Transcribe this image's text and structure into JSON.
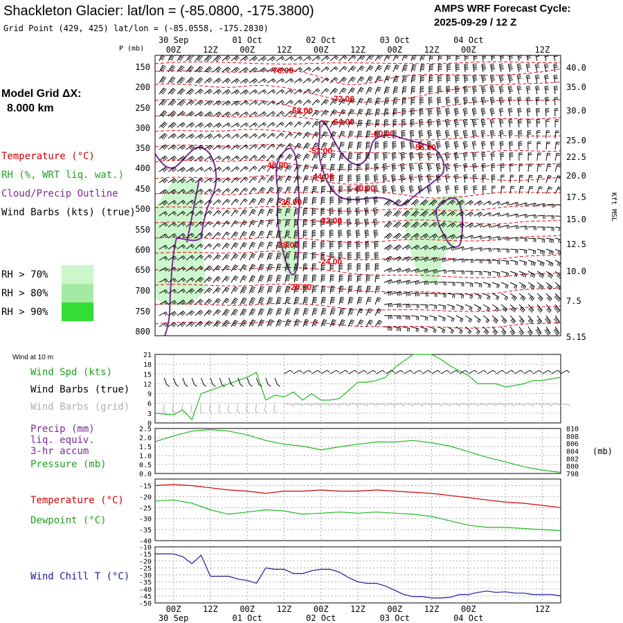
{
  "header": {
    "title": "Shackleton Glacier:  lat/lon = (-85.0800, -175.3800)",
    "grid_point": "Grid Point (429, 425) lat/lon = (-85.0558, -175.2830)",
    "cycle_line1": "AMPS WRF Forecast Cycle:",
    "cycle_line2": "2025-09-29 / 12  Z"
  },
  "model_grid": {
    "line1": "Model Grid ΔX:",
    "line2": "8.000 km"
  },
  "legend": {
    "temperature": "Temperature (°C)",
    "rh": "RH (%, WRT liq. wat.)",
    "cloud": "Cloud/Precip Outline",
    "wind": "Wind Barbs (kts) (true)",
    "rh70": "RH > 70%",
    "rh80": "RH > 80%",
    "rh90": "RH > 90%"
  },
  "colors": {
    "temp": "#e8000b",
    "cloud": "#7a2a96",
    "rh70": "#ccf6cc",
    "rh80": "#a4eaa4",
    "rh90": "#33dd33",
    "wind_spd": "#1fb81f",
    "barb_grid": "#b0b0b0",
    "chill": "#1a1aa0",
    "grid": "#aaaaaa"
  },
  "time_axis": {
    "ticks": [
      "00Z",
      "12Z",
      "00Z",
      "12Z",
      "00Z",
      "12Z",
      "00Z",
      "12Z",
      "00Z",
      "12Z"
    ],
    "dates": [
      "30 Sep",
      "01 Oct",
      "02 Oct",
      "03 Oct",
      "04 Oct"
    ],
    "start_hour": -6,
    "end_hour": 126
  },
  "pressure_axis": {
    "label": "P (mb)",
    "levels": [
      "150",
      "200",
      "250",
      "300",
      "350",
      "400",
      "450",
      "500",
      "550",
      "600",
      "650",
      "700",
      "750",
      "800"
    ],
    "height_label": "Kft MSL",
    "heights": [
      "40.0",
      "35.0",
      "30.0",
      "25.0",
      "22.5",
      "20.0",
      "17.5",
      "15.0",
      "12.5",
      "10.0",
      "7.5",
      "5.15"
    ]
  },
  "temp_contour_labels": [
    "-76.00",
    "-72.00",
    "-68.00",
    "-64.00",
    "-60.00",
    "-56.00",
    "-52.00",
    "-48.00",
    "-44.00",
    "-40.00",
    "-36.00",
    "-32.00",
    "-28.00",
    "-24.00",
    "-20.00"
  ],
  "panel_wind": {
    "title": "Wind at 10 m",
    "spd_label": "Wind Spd (kts)",
    "barbs_true": "Wind Barbs (true)",
    "barbs_grid": "Wind Barbs (grid)",
    "ylabels": [
      "21",
      "18",
      "15",
      "12",
      "9",
      "6",
      "3",
      "0"
    ]
  },
  "panel_precip": {
    "precip_label": "Precip (mm)",
    "liq_label": "liq. equiv.",
    "accum_label": "3-hr accum",
    "pressure_label": "Pressure (mb)",
    "unit": "(mb)",
    "ylabels_left": [
      "2.5",
      "2.0",
      "1.5",
      "1.0",
      "0.5",
      "0.0"
    ],
    "ylabels_right": [
      "810",
      "808",
      "806",
      "804",
      "802",
      "800",
      "798"
    ]
  },
  "panel_temp": {
    "temp_label": "Temperature (°C)",
    "dew_label": "Dewpoint (°C)",
    "ylabels": [
      "-15",
      "-20",
      "-25",
      "-30",
      "-35",
      "-40"
    ]
  },
  "panel_chill": {
    "label": "Wind Chill T (°C)",
    "ylabels": [
      "-10",
      "-15",
      "-20",
      "-25",
      "-30",
      "-35",
      "-40",
      "-45",
      "-50"
    ]
  },
  "chart_data": [
    {
      "type": "line",
      "title": "Wind Spd (kts)",
      "x_hours": [
        -6,
        0,
        3,
        6,
        9,
        12,
        15,
        18,
        21,
        24,
        27,
        30,
        33,
        36,
        39,
        42,
        45,
        48,
        51,
        54,
        57,
        60,
        63,
        66,
        69,
        72,
        75,
        78,
        81,
        84,
        87,
        90,
        93,
        96,
        99,
        102,
        105,
        108,
        111,
        114,
        117,
        120,
        123,
        126
      ],
      "values": [
        3,
        2.5,
        4,
        1,
        9,
        10,
        11,
        12,
        13,
        14,
        15.5,
        7,
        8.5,
        8,
        9.5,
        7,
        9,
        7,
        7,
        7.5,
        10,
        12.5,
        12.5,
        13,
        14,
        17,
        19,
        21,
        21,
        21,
        19.5,
        17.5,
        16,
        14.5,
        12,
        12,
        12,
        11,
        11.5,
        12,
        13,
        13,
        13.5,
        14
      ],
      "ylim": [
        0,
        21
      ]
    },
    {
      "type": "line",
      "title": "Pressure (mb)",
      "x_hours": [
        -6,
        0,
        6,
        12,
        18,
        24,
        30,
        36,
        42,
        48,
        54,
        60,
        66,
        72,
        78,
        84,
        90,
        96,
        102,
        108,
        114,
        120,
        126
      ],
      "values": [
        806.5,
        808,
        809.3,
        809.7,
        809.3,
        808.3,
        806.8,
        805.8,
        805.3,
        804.3,
        805.1,
        805.8,
        806.4,
        806.4,
        806.8,
        806.2,
        805.3,
        803.8,
        802.3,
        801.1,
        799.8,
        798.9,
        798.3
      ],
      "ylim": [
        798,
        810
      ]
    },
    {
      "type": "line",
      "title": "Temperature / Dewpoint (°C)",
      "x_hours": [
        -6,
        0,
        6,
        12,
        18,
        24,
        30,
        36,
        42,
        48,
        54,
        60,
        66,
        72,
        78,
        84,
        90,
        96,
        102,
        108,
        114,
        120,
        126
      ],
      "series": [
        {
          "name": "Temperature",
          "values": [
            -15,
            -14.5,
            -15,
            -16,
            -17,
            -17.5,
            -18.5,
            -17.5,
            -17.5,
            -17,
            -17.5,
            -17.5,
            -17,
            -17.5,
            -18,
            -18.5,
            -19.5,
            -20.5,
            -21.5,
            -22.5,
            -23,
            -24,
            -25
          ]
        },
        {
          "name": "Dewpoint",
          "values": [
            -22,
            -21.5,
            -23,
            -26,
            -28,
            -27,
            -26,
            -26.5,
            -28,
            -27.5,
            -27,
            -27.5,
            -27,
            -27.5,
            -28,
            -29,
            -31,
            -33,
            -34,
            -34,
            -34.5,
            -35,
            -35.5
          ]
        }
      ],
      "ylim": [
        -40,
        -12
      ]
    },
    {
      "type": "line",
      "title": "Wind Chill T (°C)",
      "x_hours": [
        -6,
        0,
        3,
        6,
        9,
        12,
        15,
        18,
        21,
        24,
        27,
        30,
        33,
        36,
        39,
        42,
        45,
        48,
        51,
        54,
        57,
        60,
        63,
        66,
        69,
        72,
        75,
        78,
        81,
        84,
        87,
        90,
        93,
        96,
        99,
        102,
        105,
        108,
        111,
        114,
        117,
        120,
        123,
        126
      ],
      "values": [
        -15,
        -15,
        -17,
        -22,
        -16,
        -31,
        -31,
        -31,
        -33,
        -34,
        -36,
        -25,
        -26,
        -26,
        -29,
        -29,
        -27,
        -26,
        -26,
        -28,
        -32,
        -35,
        -36,
        -36,
        -38,
        -41,
        -44,
        -45.5,
        -45.5,
        -46.5,
        -46.5,
        -46,
        -44,
        -44,
        -42.5,
        -41.5,
        -42.5,
        -42,
        -43,
        -43,
        -44,
        -44,
        -44,
        -45
      ],
      "ylim": [
        -50,
        -10
      ]
    }
  ]
}
